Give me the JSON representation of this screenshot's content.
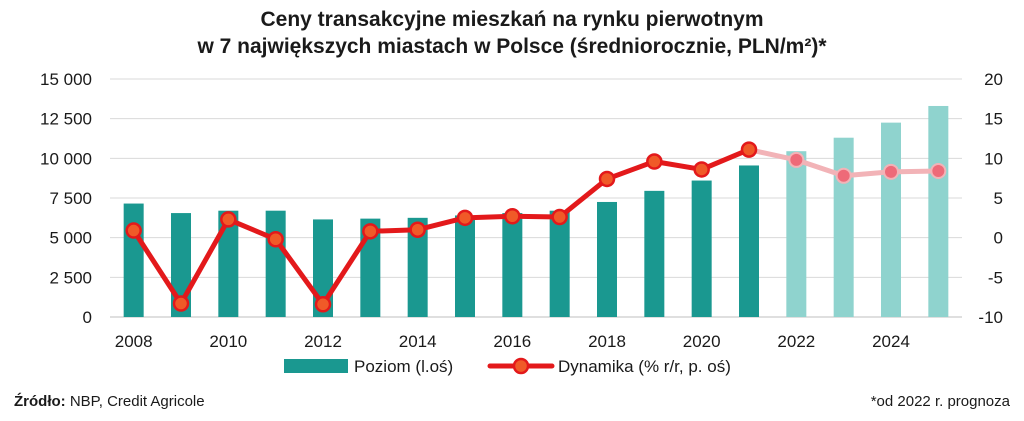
{
  "chart_data": {
    "type": "bar+line",
    "title_line1": "Ceny transakcyjne mieszkań na rynku pierwotnym",
    "title_line2": "w 7 największych miastach w Polsce (średniorocznie, PLN/m²)*",
    "x": [
      2008,
      2009,
      2010,
      2011,
      2012,
      2013,
      2014,
      2015,
      2016,
      2017,
      2018,
      2019,
      2020,
      2021,
      2022,
      2023,
      2024,
      2025
    ],
    "x_tick_labels": [
      "2008",
      "2010",
      "2012",
      "2014",
      "2016",
      "2018",
      "2020",
      "2022",
      "2024"
    ],
    "forecast_from": 2022,
    "left_axis": {
      "ylim": [
        0,
        15000
      ],
      "ticks": [
        "0",
        "2 500",
        "5 000",
        "7 500",
        "10 000",
        "12 500",
        "15 000"
      ],
      "tick_values": [
        0,
        2500,
        5000,
        7500,
        10000,
        12500,
        15000
      ]
    },
    "right_axis": {
      "ylim": [
        -10,
        20
      ],
      "ticks": [
        "-10",
        "-5",
        "0",
        "5",
        "10",
        "15",
        "20"
      ],
      "tick_values": [
        -10,
        -5,
        0,
        5,
        10,
        15,
        20
      ]
    },
    "series": [
      {
        "name": "Poziom (l.oś)",
        "axis": "left",
        "type": "bar",
        "color": "#1a9890",
        "forecast_color": "#8fd3ce",
        "values": [
          7150,
          6550,
          6700,
          6700,
          6150,
          6200,
          6250,
          6400,
          6550,
          6700,
          7250,
          7950,
          8600,
          9550,
          10450,
          11300,
          12250,
          13300
        ]
      },
      {
        "name": "Dynamika (% r/r, p. oś)",
        "axis": "right",
        "type": "line",
        "color": "#e3191b",
        "marker_color": "#f05a28",
        "forecast_color": "#f2b3b7",
        "values": [
          0.9,
          -8.3,
          2.3,
          -0.2,
          -8.4,
          0.8,
          1.0,
          2.5,
          2.7,
          2.6,
          7.4,
          9.6,
          8.6,
          11.1,
          9.8,
          7.8,
          8.3,
          8.4
        ]
      }
    ],
    "legend_position": "bottom-center",
    "grid": "horizontal"
  },
  "footer": {
    "source_label": "Źródło:",
    "source_text": " NBP, Credit Agricole",
    "note": "*od 2022 r. prognoza"
  }
}
